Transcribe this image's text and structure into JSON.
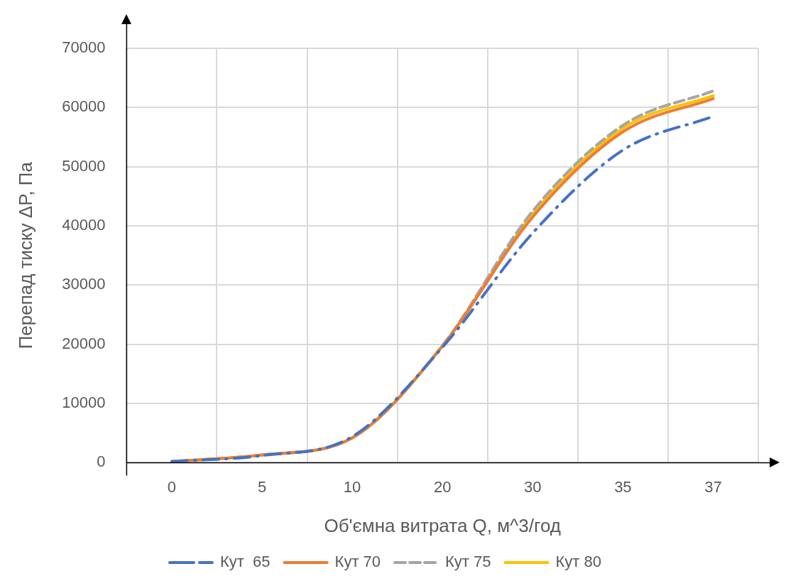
{
  "chart_data": {
    "type": "line",
    "xlabel": "Об'ємна витрата Q, м^3/год",
    "ylabel": "Перепад тиску ΔP, Па",
    "categories": [
      "0",
      "5",
      "10",
      "20",
      "30",
      "35",
      "37"
    ],
    "ylim": [
      0,
      70000
    ],
    "yticks": [
      0,
      10000,
      20000,
      30000,
      40000,
      50000,
      60000,
      70000
    ],
    "grid": true,
    "legend": "bottom",
    "series": [
      {
        "name": "Кут  65",
        "color": "#4472c4",
        "line_style": "dashdot",
        "values": [
          200,
          1200,
          4400,
          19500,
          38800,
          52800,
          58500
        ]
      },
      {
        "name": "Кут 70",
        "color": "#ed7d31",
        "line_style": "solid",
        "values": [
          200,
          1300,
          4200,
          19700,
          41500,
          55900,
          61500
        ]
      },
      {
        "name": "Кут 75",
        "color": "#a5a5a5",
        "line_style": "dashed",
        "values": [
          200,
          1300,
          4200,
          19800,
          42500,
          57000,
          62800
        ]
      },
      {
        "name": "Кут 80",
        "color": "#ffc000",
        "line_style": "solid",
        "values": [
          200,
          1300,
          4200,
          19700,
          42000,
          56500,
          62000
        ]
      }
    ]
  }
}
